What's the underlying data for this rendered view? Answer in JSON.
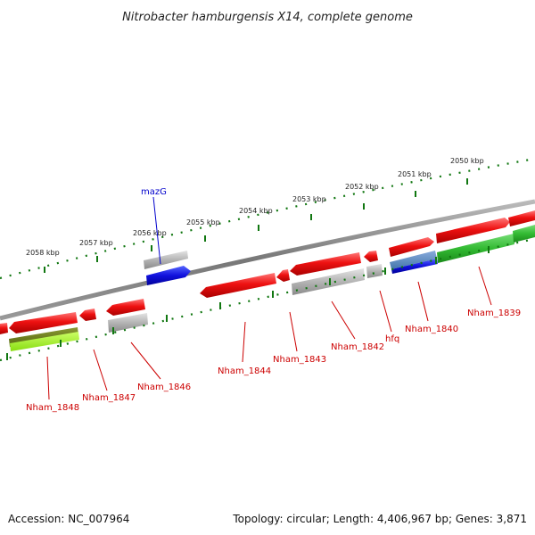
{
  "title": "Nitrobacter hamburgensis X14, complete genome",
  "footer": {
    "accession": "Accession: NC_007964",
    "summary": "Topology: circular; Length: 4,406,967 bp; Genes: 3,871"
  },
  "ruler_labels": [
    {
      "text": "2058 kbp",
      "kbp": 2058
    },
    {
      "text": "2057 kbp",
      "kbp": 2057
    },
    {
      "text": "2056 kbp",
      "kbp": 2056
    },
    {
      "text": "2055 kbp",
      "kbp": 2055
    },
    {
      "text": "2054 kbp",
      "kbp": 2054
    },
    {
      "text": "2053 kbp",
      "kbp": 2053
    },
    {
      "text": "2052 kbp",
      "kbp": 2052
    },
    {
      "text": "2051 kbp",
      "kbp": 2051
    },
    {
      "text": "2050 kbp",
      "kbp": 2050
    }
  ],
  "gene_labels": [
    {
      "text": "mazG",
      "color": "#0000cc"
    },
    {
      "text": "Nham_1848",
      "color": "#cc0000"
    },
    {
      "text": "Nham_1847",
      "color": "#cc0000"
    },
    {
      "text": "Nham_1846",
      "color": "#cc0000"
    },
    {
      "text": "Nham_1844",
      "color": "#cc0000"
    },
    {
      "text": "Nham_1843",
      "color": "#cc0000"
    },
    {
      "text": "Nham_1842",
      "color": "#cc0000"
    },
    {
      "text": "hfq",
      "color": "#cc0000"
    },
    {
      "text": "Nham_1840",
      "color": "#cc0000"
    },
    {
      "text": "Nham_1839",
      "color": "#cc0000"
    }
  ],
  "colors": {
    "cds": "#ee1111",
    "gray_feature": "#aaaaaa",
    "blue_feature": "#1111dd",
    "green_feature": "#33bb33",
    "lime_feature": "#99ee22",
    "ruler": "#117711",
    "backbone": "#888888"
  }
}
